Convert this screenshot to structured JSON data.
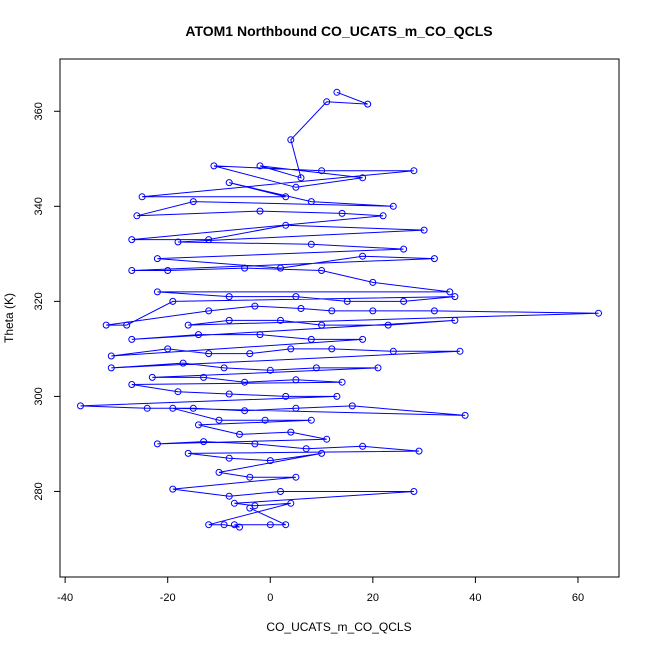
{
  "chart_data": {
    "type": "line",
    "title": "ATOM1 Northbound CO_UCATS_m_CO_QCLS",
    "xlabel": "CO_UCATS_m_CO_QCLS",
    "ylabel": "Theta (K)",
    "xlim": [
      -41,
      68
    ],
    "ylim": [
      262,
      371
    ],
    "x_ticks": [
      -40,
      -20,
      0,
      20,
      40,
      60
    ],
    "y_ticks": [
      280,
      300,
      320,
      340,
      360
    ],
    "x_tick_labels": [
      "-40",
      "-20",
      "0",
      "20",
      "40",
      "60"
    ],
    "y_tick_labels": [
      "280",
      "300",
      "320",
      "340",
      "360"
    ],
    "grid": false,
    "legend": "none",
    "markers": "open-circle",
    "series": [
      {
        "color": "#0000ff",
        "points": [
          [
            13,
            364
          ],
          [
            19,
            361.5
          ],
          [
            11,
            362
          ],
          [
            4,
            354
          ],
          [
            6,
            346
          ],
          [
            -2,
            348.5
          ],
          [
            18,
            346
          ],
          [
            5,
            344
          ],
          [
            -11,
            348.5
          ],
          [
            10,
            347.5
          ],
          [
            28,
            347.5
          ],
          [
            -25,
            342
          ],
          [
            3,
            342
          ],
          [
            -8,
            345
          ],
          [
            8,
            341
          ],
          [
            24,
            340
          ],
          [
            -15,
            341
          ],
          [
            -26,
            338
          ],
          [
            -2,
            339
          ],
          [
            14,
            338.5
          ],
          [
            22,
            338
          ],
          [
            -27,
            333
          ],
          [
            -12,
            333
          ],
          [
            3,
            336
          ],
          [
            30,
            335
          ],
          [
            -18,
            332.5
          ],
          [
            8,
            332
          ],
          [
            26,
            331
          ],
          [
            -22,
            329
          ],
          [
            2,
            327
          ],
          [
            18,
            329.5
          ],
          [
            32,
            329
          ],
          [
            -27,
            326.5
          ],
          [
            -20,
            326.5
          ],
          [
            -5,
            327
          ],
          [
            10,
            326.5
          ],
          [
            20,
            324
          ],
          [
            35,
            322
          ],
          [
            -22,
            322
          ],
          [
            -8,
            321
          ],
          [
            5,
            321
          ],
          [
            15,
            320
          ],
          [
            26,
            320
          ],
          [
            36,
            321
          ],
          [
            -19,
            320
          ],
          [
            -28,
            315
          ],
          [
            -32,
            315
          ],
          [
            -12,
            318
          ],
          [
            -3,
            319
          ],
          [
            6,
            318.5
          ],
          [
            12,
            318
          ],
          [
            20,
            318
          ],
          [
            32,
            318
          ],
          [
            64,
            317.5
          ],
          [
            -16,
            315
          ],
          [
            -8,
            316
          ],
          [
            2,
            316
          ],
          [
            10,
            315
          ],
          [
            23,
            315
          ],
          [
            36,
            316
          ],
          [
            -27,
            312
          ],
          [
            -14,
            313
          ],
          [
            -2,
            313
          ],
          [
            8,
            312
          ],
          [
            18,
            312
          ],
          [
            -31,
            308.5
          ],
          [
            -20,
            310
          ],
          [
            -12,
            309
          ],
          [
            -4,
            309
          ],
          [
            4,
            310
          ],
          [
            12,
            310
          ],
          [
            24,
            309.5
          ],
          [
            37,
            309.5
          ],
          [
            -31,
            306
          ],
          [
            -17,
            307
          ],
          [
            -9,
            306
          ],
          [
            0,
            305.5
          ],
          [
            9,
            306
          ],
          [
            21,
            306
          ],
          [
            -23,
            304
          ],
          [
            -13,
            304
          ],
          [
            -5,
            303
          ],
          [
            5,
            303.5
          ],
          [
            14,
            303
          ],
          [
            -27,
            302.5
          ],
          [
            -18,
            301
          ],
          [
            -8,
            300.5
          ],
          [
            3,
            300
          ],
          [
            13,
            300
          ],
          [
            -37,
            298
          ],
          [
            -24,
            297.5
          ],
          [
            -15,
            297.5
          ],
          [
            -5,
            297
          ],
          [
            5,
            297.5
          ],
          [
            16,
            298
          ],
          [
            38,
            296
          ],
          [
            -19,
            297.5
          ],
          [
            -10,
            295
          ],
          [
            -1,
            295
          ],
          [
            8,
            295
          ],
          [
            -14,
            294
          ],
          [
            -6,
            292
          ],
          [
            4,
            292.5
          ],
          [
            11,
            291
          ],
          [
            -22,
            290
          ],
          [
            -13,
            290.5
          ],
          [
            -3,
            290
          ],
          [
            7,
            289
          ],
          [
            18,
            289.5
          ],
          [
            29,
            288.5
          ],
          [
            -16,
            288
          ],
          [
            -8,
            287
          ],
          [
            0,
            286.5
          ],
          [
            10,
            288
          ],
          [
            -10,
            284
          ],
          [
            -4,
            283
          ],
          [
            5,
            283
          ],
          [
            -19,
            280.5
          ],
          [
            -8,
            279
          ],
          [
            2,
            280
          ],
          [
            28,
            280
          ],
          [
            -7,
            277.5
          ],
          [
            -3,
            277
          ],
          [
            4,
            277.5
          ],
          [
            -12,
            273
          ],
          [
            -9,
            273
          ],
          [
            -6,
            272.5
          ],
          [
            -7,
            273
          ],
          [
            0,
            273
          ],
          [
            3,
            273
          ],
          [
            -4,
            276.5
          ]
        ]
      }
    ]
  }
}
